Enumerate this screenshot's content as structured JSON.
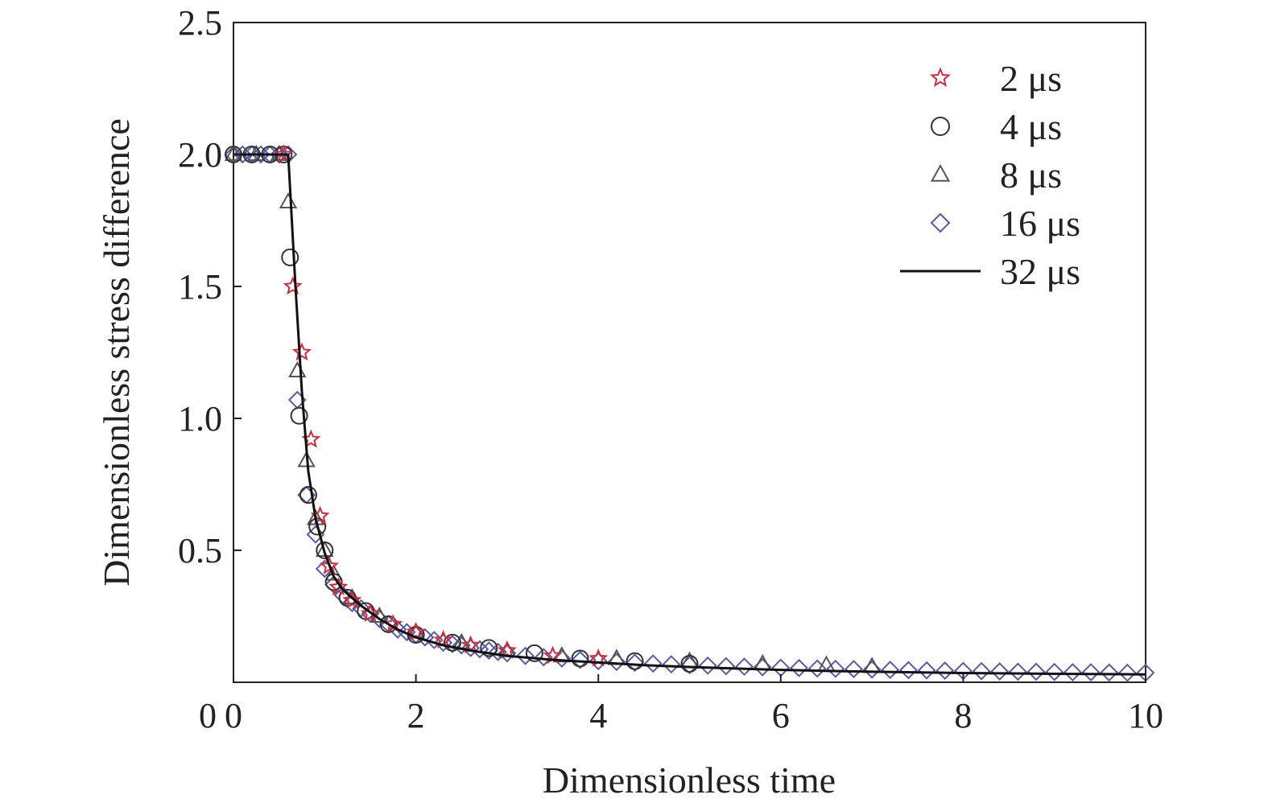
{
  "chart_data": {
    "type": "scatter",
    "title": "",
    "xlabel": "Dimensionless time",
    "ylabel": "Dimensionless stress difference",
    "xlim": [
      0,
      10
    ],
    "ylim": [
      0,
      2.5
    ],
    "xticks": [
      0,
      2,
      4,
      6,
      8,
      10
    ],
    "xtick_labels": [
      "0",
      "2",
      "4",
      "6",
      "8",
      "10"
    ],
    "yticks": [
      0.5,
      1.0,
      1.5,
      2.0,
      2.5
    ],
    "ytick_labels": [
      "0.5",
      "1.0",
      "1.5",
      "2.0",
      "2.5"
    ],
    "grid": false,
    "legend_position": "top-right",
    "series": [
      {
        "name": "2 μs",
        "marker": "star",
        "color": "#d42a3c",
        "x": [
          0.55,
          0.65,
          0.75,
          0.85,
          0.95,
          1.05,
          1.15,
          1.3,
          1.5,
          1.75,
          2.0,
          2.3,
          2.6,
          3.0,
          3.5,
          4.0
        ],
        "y": [
          2.0,
          1.5,
          1.25,
          0.92,
          0.63,
          0.44,
          0.36,
          0.31,
          0.26,
          0.22,
          0.19,
          0.16,
          0.14,
          0.12,
          0.1,
          0.09
        ]
      },
      {
        "name": "4 μs",
        "marker": "circle",
        "color": "#4a4a8a",
        "x": [
          0.0,
          0.2,
          0.4,
          0.55,
          0.62,
          0.72,
          0.82,
          0.92,
          1.0,
          1.1,
          1.25,
          1.45,
          1.7,
          2.0,
          2.4,
          2.8,
          3.3,
          3.8,
          4.4,
          5.0
        ],
        "y": [
          2.0,
          2.0,
          2.0,
          2.0,
          1.61,
          1.01,
          0.71,
          0.59,
          0.5,
          0.38,
          0.32,
          0.27,
          0.22,
          0.18,
          0.15,
          0.13,
          0.11,
          0.09,
          0.08,
          0.07
        ],
        "outline_color": "#333333"
      },
      {
        "name": "8 μs",
        "marker": "triangle",
        "color": "#555555",
        "x": [
          0.0,
          0.25,
          0.5,
          0.6,
          0.7,
          0.8,
          0.9,
          1.0,
          1.1,
          1.3,
          1.6,
          2.0,
          2.5,
          3.0,
          3.6,
          4.2,
          5.0,
          5.8,
          6.5,
          7.0
        ],
        "y": [
          2.0,
          2.0,
          2.0,
          1.82,
          1.18,
          0.84,
          0.62,
          0.5,
          0.41,
          0.32,
          0.25,
          0.19,
          0.15,
          0.12,
          0.1,
          0.09,
          0.08,
          0.07,
          0.065,
          0.06
        ]
      },
      {
        "name": "16 μs",
        "marker": "diamond",
        "color": "#5a5aa6",
        "x": [
          0.0,
          0.1,
          0.2,
          0.3,
          0.4,
          0.5,
          0.6,
          0.7,
          0.8,
          0.9,
          1.0,
          1.1,
          1.2,
          1.3,
          1.4,
          1.5,
          1.6,
          1.7,
          1.8,
          1.9,
          2.0,
          2.1,
          2.2,
          2.3,
          2.4,
          2.5,
          2.6,
          2.7,
          2.8,
          2.9,
          3.0,
          3.2,
          3.4,
          3.6,
          3.8,
          4.0,
          4.2,
          4.4,
          4.6,
          4.8,
          5.0,
          5.2,
          5.4,
          5.6,
          5.8,
          6.0,
          6.2,
          6.4,
          6.6,
          6.8,
          7.0,
          7.2,
          7.4,
          7.6,
          7.8,
          8.0,
          8.2,
          8.4,
          8.6,
          8.8,
          9.0,
          9.2,
          9.4,
          9.6,
          9.8,
          10.0
        ],
        "y": [
          2.0,
          2.0,
          2.0,
          2.0,
          2.0,
          2.0,
          2.0,
          1.07,
          0.71,
          0.56,
          0.43,
          0.37,
          0.33,
          0.3,
          0.28,
          0.26,
          0.24,
          0.22,
          0.2,
          0.19,
          0.18,
          0.17,
          0.16,
          0.15,
          0.145,
          0.14,
          0.13,
          0.125,
          0.12,
          0.115,
          0.11,
          0.1,
          0.095,
          0.09,
          0.085,
          0.08,
          0.077,
          0.074,
          0.071,
          0.068,
          0.065,
          0.063,
          0.061,
          0.059,
          0.057,
          0.055,
          0.054,
          0.052,
          0.051,
          0.05,
          0.048,
          0.047,
          0.046,
          0.045,
          0.044,
          0.043,
          0.042,
          0.041,
          0.04,
          0.04,
          0.039,
          0.038,
          0.038,
          0.037,
          0.036,
          0.036
        ]
      },
      {
        "name": "32 μs",
        "marker": "line",
        "color": "#111111",
        "x": [
          0.0,
          0.5,
          0.6,
          0.68,
          0.75,
          0.82,
          0.9,
          1.0,
          1.1,
          1.2,
          1.4,
          1.6,
          1.8,
          2.0,
          2.3,
          2.6,
          3.0,
          3.5,
          4.0,
          4.5,
          5.0,
          5.5,
          6.0,
          6.5,
          7.0,
          8.0,
          9.0,
          10.0
        ],
        "y": [
          2.0,
          2.0,
          2.0,
          1.5,
          1.1,
          0.8,
          0.62,
          0.49,
          0.4,
          0.35,
          0.29,
          0.24,
          0.2,
          0.17,
          0.14,
          0.12,
          0.1,
          0.085,
          0.075,
          0.065,
          0.058,
          0.052,
          0.047,
          0.043,
          0.04,
          0.035,
          0.032,
          0.03
        ]
      }
    ]
  }
}
